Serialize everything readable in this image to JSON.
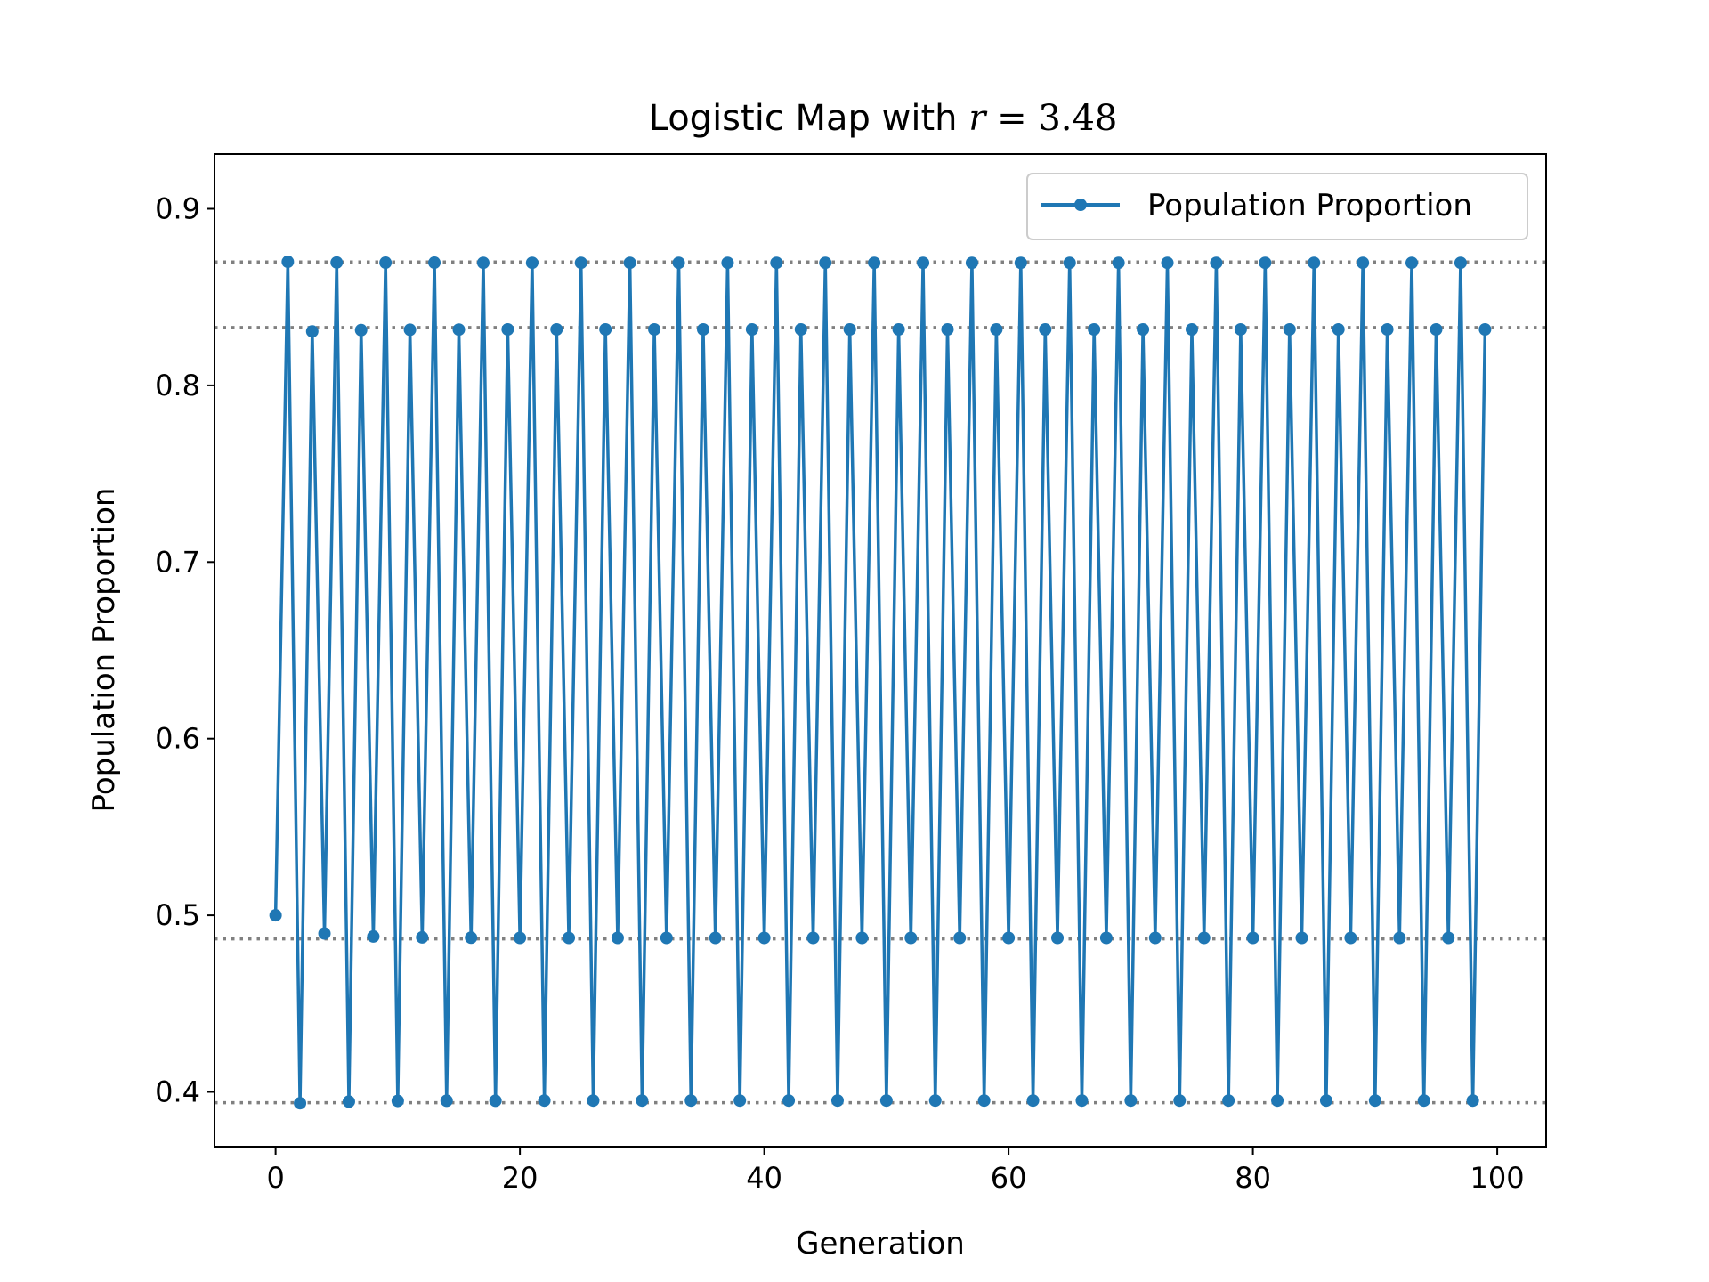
{
  "chart_data": {
    "type": "line",
    "title_prefix": "Logistic Map with ",
    "title_math_var": "r",
    "title_math_op": " = ",
    "title_math_value": "3.48",
    "r": 3.48,
    "x0": 0.5,
    "xlabel": "Generation",
    "ylabel": "Population Proportion",
    "xlim": [
      -5,
      104
    ],
    "ylim": [
      0.369,
      0.931
    ],
    "xticks": [
      0,
      20,
      40,
      60,
      80,
      100
    ],
    "yticks": [
      0.4,
      0.5,
      0.6,
      0.7,
      0.8,
      0.9
    ],
    "ytick_labels": [
      "0.4",
      "0.5",
      "0.6",
      "0.7",
      "0.8",
      "0.9"
    ],
    "grid": false,
    "legend_position": "top-right",
    "series": [
      {
        "name": "Population Proportion",
        "color": "#1f77b4",
        "marker": "circle",
        "x_start": 0,
        "x_end": 99,
        "values": []
      }
    ],
    "reference_lines": {
      "y_values": [
        0.8699,
        0.8328,
        0.4866,
        0.3939
      ],
      "color": "#808080",
      "style": "dotted"
    }
  }
}
